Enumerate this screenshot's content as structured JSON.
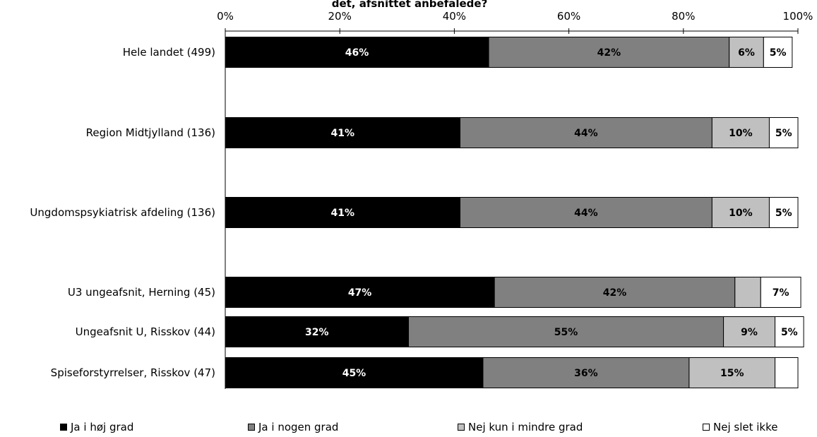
{
  "chart_data": {
    "type": "bar",
    "orientation": "horizontal",
    "stacked": true,
    "title": "det, afsnittet anbefalede?",
    "xlim": [
      0,
      100
    ],
    "xticks": [
      "0%",
      "20%",
      "40%",
      "60%",
      "80%",
      "100%"
    ],
    "categories": [
      "Hele landet (499)",
      "Region Midtjylland (136)",
      "Ungdomspsykiatrisk afdeling (136)",
      "U3 ungeafsnit, Herning (45)",
      "Ungeafsnit U, Risskov (44)",
      "Spiseforstyrrelser, Risskov (47)"
    ],
    "series": [
      {
        "name": "Ja i høj grad",
        "color": "#000000",
        "label_color": "#ffffff",
        "values": [
          46,
          41,
          41,
          47,
          32,
          45
        ],
        "labels": [
          "46%",
          "41%",
          "41%",
          "47%",
          "32%",
          "45%"
        ]
      },
      {
        "name": "Ja i nogen grad",
        "color": "#808080",
        "label_color": "#000000",
        "values": [
          42,
          44,
          44,
          42,
          55,
          36
        ],
        "labels": [
          "42%",
          "44%",
          "44%",
          "42%",
          "55%",
          "36%"
        ]
      },
      {
        "name": "Nej kun i mindre grad",
        "color": "#c0c0c0",
        "label_color": "#000000",
        "values": [
          6,
          10,
          10,
          4.5,
          9,
          15
        ],
        "labels": [
          "6%",
          "10%",
          "10%",
          "",
          "9%",
          "15%"
        ]
      },
      {
        "name": "Nej slet ikke",
        "color": "#ffffff",
        "label_color": "#000000",
        "values": [
          5,
          5,
          5,
          7,
          5,
          4
        ],
        "labels": [
          "5%",
          "5%",
          "5%",
          "7%",
          "5%",
          ""
        ]
      }
    ],
    "legend_position": "bottom",
    "grid": false
  }
}
